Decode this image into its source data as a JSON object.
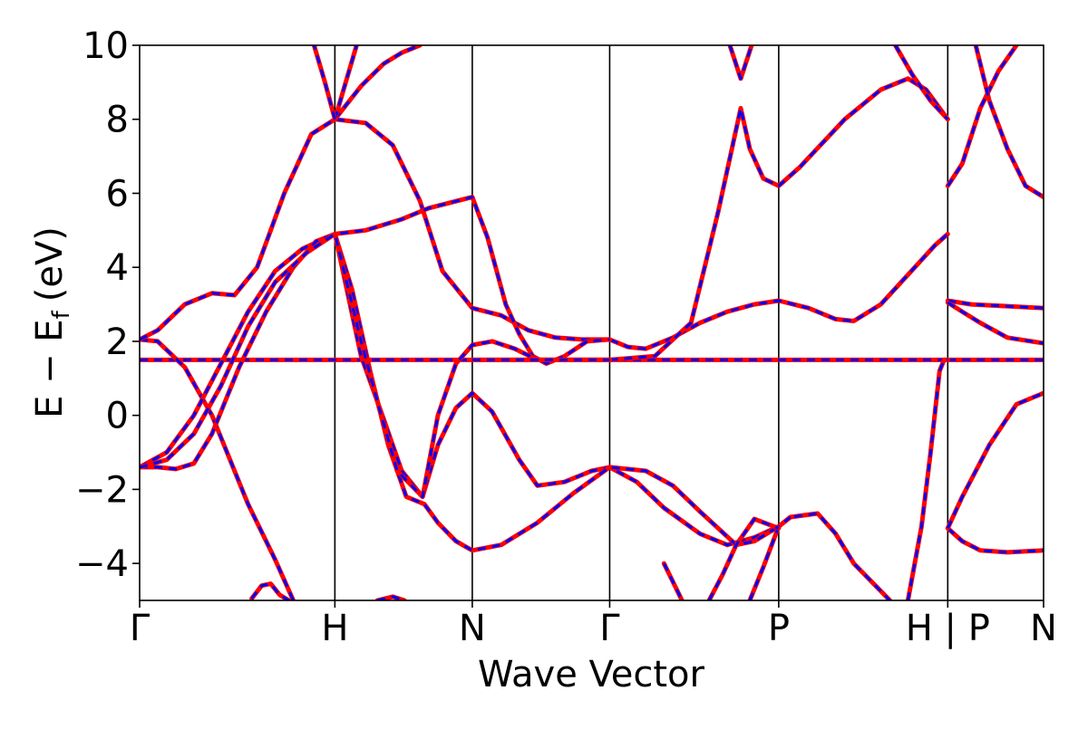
{
  "chart_data": {
    "type": "line",
    "title": "",
    "xlabel": "Wave Vector",
    "ylabel": "E − E",
    "ylabel_subscript": "f",
    "ylabel_unit": "(eV)",
    "ylim": [
      -5,
      10
    ],
    "yticks": [
      -4,
      -2,
      0,
      2,
      4,
      6,
      8,
      10
    ],
    "ytick_labels": [
      "−4",
      "−2",
      "0",
      "2",
      "4",
      "6",
      "8",
      "10"
    ],
    "xlim": [
      0,
      100
    ],
    "kpoints": [
      {
        "label": "Γ",
        "x": 0
      },
      {
        "label": "H",
        "x": 21.6
      },
      {
        "label": "N",
        "x": 36.8
      },
      {
        "label": "Γ",
        "x": 52.0
      },
      {
        "label": "P",
        "x": 70.7
      },
      {
        "label": "H | P",
        "x": 89.4
      },
      {
        "label": "N",
        "x": 100
      }
    ],
    "line_styles": {
      "solid": "#ff0000",
      "dashed": "#0000ff"
    },
    "bands": [
      {
        "segments": [
          [
            [
              0,
              1.5
            ],
            [
              21.6,
              1.5
            ],
            [
              36.8,
              1.5
            ],
            [
              52.0,
              1.5
            ],
            [
              70.7,
              1.5
            ],
            [
              89.4,
              1.5
            ]
          ],
          [
            [
              89.4,
              1.5
            ],
            [
              100,
              1.5
            ]
          ]
        ]
      },
      {
        "segments": [
          [
            [
              0,
              2.05
            ],
            [
              2,
              2.0
            ],
            [
              5,
              1.3
            ],
            [
              8,
              0.0
            ],
            [
              10,
              -1.2
            ],
            [
              12,
              -2.4
            ],
            [
              15,
              -3.9
            ],
            [
              17,
              -5.0
            ]
          ],
          [
            [
              21.6,
              4.9
            ],
            [
              24.5,
              1.6
            ],
            [
              27,
              -0.1
            ],
            [
              29,
              -1.5
            ],
            [
              31.3,
              -2.2
            ],
            [
              33,
              -0.8
            ],
            [
              35,
              0.2
            ],
            [
              36.8,
              0.6
            ],
            [
              39,
              0.1
            ],
            [
              42,
              -1.2
            ],
            [
              44,
              -1.9
            ],
            [
              47,
              -1.8
            ],
            [
              50,
              -1.5
            ],
            [
              52.0,
              -1.4
            ],
            [
              55,
              -1.8
            ],
            [
              58,
              -2.5
            ],
            [
              62,
              -3.2
            ],
            [
              65,
              -3.5
            ],
            [
              68,
              -3.3
            ],
            [
              70.7,
              -3.0
            ]
          ],
          [
            [
              89.4,
              -3.05
            ],
            [
              91,
              -3.4
            ],
            [
              93,
              -3.65
            ],
            [
              96,
              -3.7
            ],
            [
              100,
              -3.65
            ]
          ]
        ]
      },
      {
        "segments": [
          [
            [
              0,
              2.05
            ],
            [
              2,
              2.3
            ],
            [
              5,
              3.0
            ],
            [
              8,
              3.3
            ],
            [
              10.5,
              3.25
            ],
            [
              13,
              4.0
            ],
            [
              16,
              6.0
            ],
            [
              19,
              7.6
            ],
            [
              21.6,
              8.0
            ],
            [
              25,
              7.9
            ],
            [
              28,
              7.3
            ],
            [
              31,
              5.8
            ],
            [
              33.5,
              3.9
            ],
            [
              36.8,
              2.9
            ],
            [
              40,
              2.7
            ],
            [
              43,
              2.3
            ],
            [
              46,
              2.1
            ],
            [
              49,
              2.05
            ],
            [
              52.0,
              2.05
            ],
            [
              54,
              1.85
            ],
            [
              56,
              1.8
            ],
            [
              59,
              2.1
            ],
            [
              62,
              2.5
            ],
            [
              65,
              2.8
            ],
            [
              68,
              3.0
            ],
            [
              70.7,
              3.1
            ],
            [
              74,
              2.9
            ],
            [
              77,
              2.6
            ],
            [
              79,
              2.55
            ],
            [
              82,
              3.0
            ],
            [
              85,
              3.8
            ],
            [
              88,
              4.6
            ],
            [
              89.4,
              4.9
            ]
          ],
          [
            [
              89.4,
              3.1
            ],
            [
              92,
              3.0
            ],
            [
              96,
              2.95
            ],
            [
              100,
              2.9
            ]
          ]
        ]
      },
      {
        "segments": [
          [
            [
              0,
              -1.4
            ],
            [
              3,
              -1.0
            ],
            [
              6,
              0.0
            ],
            [
              9,
              1.4
            ],
            [
              12,
              2.8
            ],
            [
              15,
              3.9
            ],
            [
              18,
              4.5
            ],
            [
              21.6,
              4.9
            ],
            [
              25,
              5.0
            ],
            [
              29,
              5.3
            ],
            [
              32,
              5.6
            ],
            [
              36.8,
              5.9
            ],
            [
              38.5,
              4.8
            ],
            [
              40.5,
              3.0
            ],
            [
              42,
              2.2
            ],
            [
              43.5,
              1.6
            ],
            [
              45,
              1.4
            ],
            [
              47,
              1.6
            ],
            [
              49.5,
              2.0
            ],
            [
              52.0,
              2.05
            ]
          ],
          [
            [
              89.4,
              3.05
            ],
            [
              91,
              2.8
            ],
            [
              93,
              2.5
            ],
            [
              96,
              2.1
            ],
            [
              100,
              1.95
            ]
          ]
        ]
      },
      {
        "segments": [
          [
            [
              0,
              -1.4
            ],
            [
              2,
              -1.4
            ],
            [
              4,
              -1.45
            ],
            [
              6,
              -1.3
            ],
            [
              8,
              -0.5
            ],
            [
              11,
              1.3
            ],
            [
              14,
              2.8
            ],
            [
              17,
              4.0
            ],
            [
              19.5,
              4.7
            ],
            [
              21.6,
              4.9
            ],
            [
              23.5,
              3.4
            ],
            [
              25.5,
              1.2
            ],
            [
              27.5,
              -0.8
            ],
            [
              29.5,
              -2.2
            ],
            [
              31.5,
              -2.4
            ],
            [
              33,
              -2.9
            ],
            [
              35,
              -3.4
            ],
            [
              36.8,
              -3.65
            ],
            [
              40,
              -3.5
            ],
            [
              44,
              -2.9
            ],
            [
              48,
              -2.1
            ],
            [
              52.0,
              -1.4
            ],
            [
              56,
              -1.5
            ],
            [
              59,
              -1.9
            ],
            [
              62,
              -2.6
            ],
            [
              66,
              -3.5
            ],
            [
              68,
              -3.4
            ],
            [
              70.7,
              -3.0
            ],
            [
              72,
              -2.75
            ],
            [
              75,
              -2.65
            ],
            [
              77,
              -3.2
            ],
            [
              79,
              -4.0
            ],
            [
              81,
              -4.5
            ],
            [
              83,
              -5.0
            ]
          ],
          [
            [
              89.4,
              -3.05
            ],
            [
              91,
              -2.2
            ],
            [
              94,
              -0.8
            ],
            [
              97,
              0.3
            ],
            [
              100,
              0.6
            ]
          ]
        ]
      },
      {
        "segments": [
          [
            [
              0,
              -1.4
            ],
            [
              3,
              -1.2
            ],
            [
              6,
              -0.5
            ],
            [
              9,
              0.8
            ],
            [
              12,
              2.4
            ],
            [
              15,
              3.6
            ],
            [
              18.5,
              4.4
            ],
            [
              21.6,
              4.9
            ],
            [
              24.5,
              2.0
            ],
            [
              26.5,
              0.2
            ],
            [
              28.5,
              -1.5
            ],
            [
              31.3,
              -2.2
            ],
            [
              33,
              0.0
            ],
            [
              35,
              1.4
            ],
            [
              36.8,
              1.9
            ],
            [
              39,
              2.0
            ],
            [
              41.5,
              1.8
            ],
            [
              44,
              1.5
            ],
            [
              47,
              1.5
            ],
            [
              52.0,
              1.5
            ]
          ],
          [
            [
              58,
              -4.0
            ],
            [
              60,
              -5.0
            ]
          ]
        ]
      },
      {
        "segments": [
          [
            [
              21.6,
              8.0
            ],
            [
              24.5,
              8.9
            ],
            [
              27,
              9.5
            ],
            [
              29,
              9.8
            ],
            [
              31,
              10.0
            ]
          ],
          [
            [
              21.6,
              8.0
            ],
            [
              22.8,
              9.0
            ],
            [
              24,
              10.0
            ]
          ],
          [
            [
              21.6,
              8.0
            ],
            [
              20.5,
              9.0
            ],
            [
              19.3,
              10.0
            ]
          ],
          [
            [
              67.5,
              -5.0
            ],
            [
              69,
              -4.1
            ],
            [
              70.7,
              -3.0
            ],
            [
              72,
              -2.75
            ]
          ],
          [
            [
              63,
              -5.0
            ],
            [
              64.5,
              -4.3
            ],
            [
              66,
              -3.5
            ],
            [
              68,
              -2.8
            ],
            [
              70.7,
              -3.05
            ]
          ]
        ]
      },
      {
        "segments": [
          [
            [
              52.0,
              1.5
            ],
            [
              57,
              1.6
            ],
            [
              61,
              2.5
            ],
            [
              64,
              5.5
            ],
            [
              66.5,
              8.3
            ],
            [
              67.5,
              7.2
            ],
            [
              69,
              6.4
            ],
            [
              70.7,
              6.2
            ],
            [
              73,
              6.7
            ],
            [
              78,
              8.0
            ],
            [
              82,
              8.8
            ],
            [
              85,
              9.1
            ],
            [
              87,
              8.8
            ],
            [
              89.4,
              8.0
            ]
          ],
          [
            [
              65.3,
              10.0
            ],
            [
              66.5,
              9.1
            ],
            [
              67.7,
              10.0
            ]
          ],
          [
            [
              83.6,
              10.0
            ],
            [
              85.5,
              9.2
            ],
            [
              87.5,
              8.5
            ],
            [
              89.4,
              8.0
            ]
          ],
          [
            [
              89.4,
              6.2
            ],
            [
              91,
              6.8
            ],
            [
              93,
              8.3
            ],
            [
              95,
              9.3
            ],
            [
              97,
              10.0
            ]
          ],
          [
            [
              92.5,
              10.0
            ],
            [
              94,
              8.5
            ],
            [
              96,
              7.2
            ],
            [
              98,
              6.2
            ],
            [
              100,
              5.9
            ]
          ]
        ]
      },
      {
        "segments": [
          [
            [
              12.4,
              -4.95
            ],
            [
              13.5,
              -4.6
            ],
            [
              14.5,
              -4.55
            ],
            [
              15.5,
              -4.85
            ],
            [
              16.5,
              -5.0
            ]
          ],
          [
            [
              26.3,
              -5.0
            ],
            [
              28,
              -4.9
            ],
            [
              29.3,
              -5.0
            ]
          ]
        ]
      },
      {
        "segments": [
          [
            [
              85,
              -5.0
            ],
            [
              86.5,
              -3.0
            ],
            [
              87.5,
              -1.0
            ],
            [
              88.5,
              1.2
            ],
            [
              89,
              1.5
            ],
            [
              89.4,
              1.5
            ]
          ],
          [
            [
              36.8,
              1.5
            ],
            [
              52.0,
              1.5
            ]
          ]
        ]
      }
    ]
  }
}
